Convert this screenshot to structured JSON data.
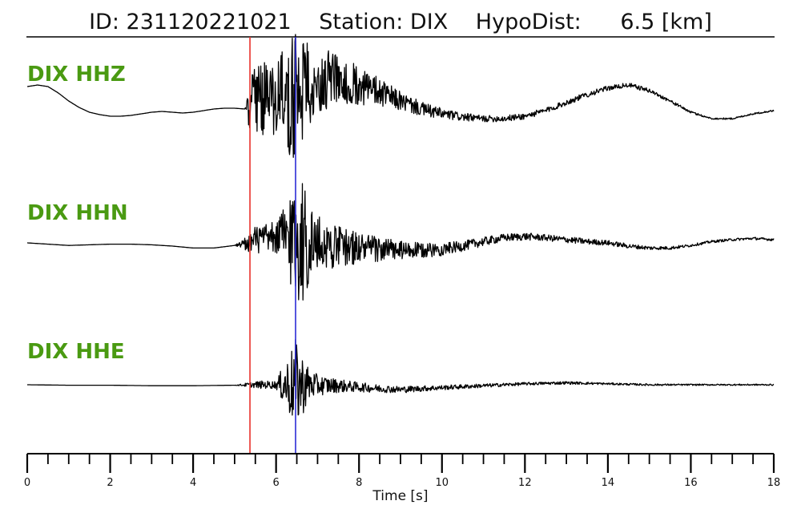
{
  "header": {
    "id_text": "ID: 231120221021",
    "station_text": "Station: DIX",
    "hypodist_label": "HypoDist:",
    "hypodist_value": "6.5 [km]"
  },
  "chart_data": {
    "type": "line",
    "title": "ID: 231120221021    Station: DIX    HypoDist:      6.5 [km]",
    "xlabel": "Time [s]",
    "xlim": [
      0,
      18
    ],
    "x_major_ticks": [
      0,
      2,
      4,
      6,
      8,
      10,
      12,
      14,
      16,
      18
    ],
    "x_minor_step": 0.5,
    "grid": false,
    "picks": [
      {
        "phase": "P",
        "time": 5.37,
        "color": "#e8302a"
      },
      {
        "phase": "S",
        "time": 6.47,
        "color": "#2b2bd6"
      }
    ],
    "trace_label_color": "#4a9a12",
    "series": [
      {
        "name": "DIX HHZ",
        "x": [
          0,
          0.25,
          0.5,
          0.75,
          1,
          1.25,
          1.5,
          1.75,
          2,
          2.25,
          2.5,
          2.75,
          3,
          3.25,
          3.5,
          3.75,
          4,
          4.25,
          4.5,
          4.75,
          5,
          5.25,
          5.37,
          5.5,
          5.75,
          6,
          6.25,
          6.5,
          6.75,
          7,
          7.5,
          8,
          8.5,
          9,
          9.5,
          10,
          10.5,
          11,
          11.5,
          12,
          12.5,
          13,
          13.5,
          14,
          14.5,
          15,
          15.5,
          16,
          16.5,
          17,
          17.5,
          18
        ],
        "y": [
          0.2,
          0.22,
          0.2,
          0.12,
          0.02,
          -0.06,
          -0.12,
          -0.15,
          -0.17,
          -0.17,
          -0.16,
          -0.14,
          -0.12,
          -0.11,
          -0.12,
          -0.13,
          -0.12,
          -0.1,
          -0.08,
          -0.07,
          -0.07,
          -0.08,
          -0.08,
          0.05,
          0.12,
          0.08,
          0.1,
          0.18,
          0.25,
          0.28,
          0.3,
          0.22,
          0.12,
          0.02,
          -0.08,
          -0.14,
          -0.18,
          -0.2,
          -0.2,
          -0.17,
          -0.1,
          0.0,
          0.1,
          0.18,
          0.22,
          0.15,
          0.02,
          -0.12,
          -0.2,
          -0.2,
          -0.14,
          -0.1
        ],
        "noise": [
          0,
          0,
          0,
          0,
          0,
          0,
          0,
          0,
          0,
          0,
          0,
          0,
          0,
          0,
          0,
          0,
          0,
          0,
          0,
          0,
          0,
          0,
          0.35,
          0.5,
          0.52,
          0.55,
          0.75,
          0.9,
          0.6,
          0.42,
          0.3,
          0.25,
          0.18,
          0.12,
          0.09,
          0.07,
          0.05,
          0.04,
          0.04,
          0.04,
          0.035,
          0.035,
          0.035,
          0.03,
          0.03,
          0.025,
          0.02,
          0.015,
          0.01,
          0.01,
          0.01,
          0.01
        ]
      },
      {
        "name": "DIX HHN",
        "x": [
          0,
          0.5,
          1,
          1.5,
          2,
          2.5,
          3,
          3.5,
          4,
          4.5,
          5,
          5.37,
          5.5,
          6,
          6.47,
          6.6,
          6.8,
          7,
          7.5,
          8,
          8.5,
          9,
          9.5,
          10,
          10.5,
          11,
          11.5,
          12,
          12.5,
          13,
          13.5,
          14,
          14.5,
          15,
          15.5,
          16,
          16.5,
          17,
          17.5,
          18
        ],
        "y": [
          0.0,
          -0.02,
          -0.04,
          -0.03,
          -0.02,
          -0.02,
          -0.03,
          -0.05,
          -0.08,
          -0.08,
          -0.04,
          0.0,
          0.05,
          0.08,
          0.1,
          0.05,
          0.0,
          -0.02,
          -0.05,
          -0.08,
          -0.1,
          -0.12,
          -0.12,
          -0.1,
          -0.05,
          0.02,
          0.08,
          0.1,
          0.08,
          0.05,
          0.02,
          0.0,
          -0.05,
          -0.08,
          -0.08,
          -0.04,
          0.02,
          0.05,
          0.07,
          0.05
        ],
        "noise": [
          0,
          0,
          0,
          0,
          0,
          0,
          0,
          0,
          0,
          0,
          0,
          0.15,
          0.22,
          0.25,
          1.0,
          1.1,
          0.7,
          0.45,
          0.32,
          0.25,
          0.2,
          0.15,
          0.12,
          0.1,
          0.08,
          0.07,
          0.06,
          0.06,
          0.05,
          0.05,
          0.045,
          0.04,
          0.035,
          0.03,
          0.025,
          0.02,
          0.02,
          0.02,
          0.02,
          0.02
        ]
      },
      {
        "name": "DIX HHE",
        "x": [
          0,
          1,
          2,
          3,
          4,
          5,
          5.37,
          5.6,
          6,
          6.47,
          6.6,
          6.8,
          7,
          7.5,
          8,
          8.5,
          9,
          9.5,
          10,
          11,
          12,
          13,
          14,
          15,
          16,
          17,
          18
        ],
        "y": [
          0.0,
          -0.01,
          -0.01,
          -0.02,
          -0.02,
          -0.01,
          0.0,
          0.0,
          0.0,
          0.0,
          0.0,
          0.0,
          -0.01,
          -0.02,
          -0.05,
          -0.08,
          -0.1,
          -0.08,
          -0.06,
          -0.02,
          0.02,
          0.04,
          0.02,
          0.0,
          0.0,
          0.0,
          0.0
        ],
        "noise": [
          0,
          0,
          0,
          0,
          0,
          0,
          0.05,
          0.08,
          0.08,
          0.95,
          0.7,
          0.35,
          0.22,
          0.14,
          0.1,
          0.08,
          0.07,
          0.06,
          0.05,
          0.04,
          0.03,
          0.03,
          0.02,
          0.02,
          0.015,
          0.015,
          0.015
        ]
      }
    ]
  }
}
